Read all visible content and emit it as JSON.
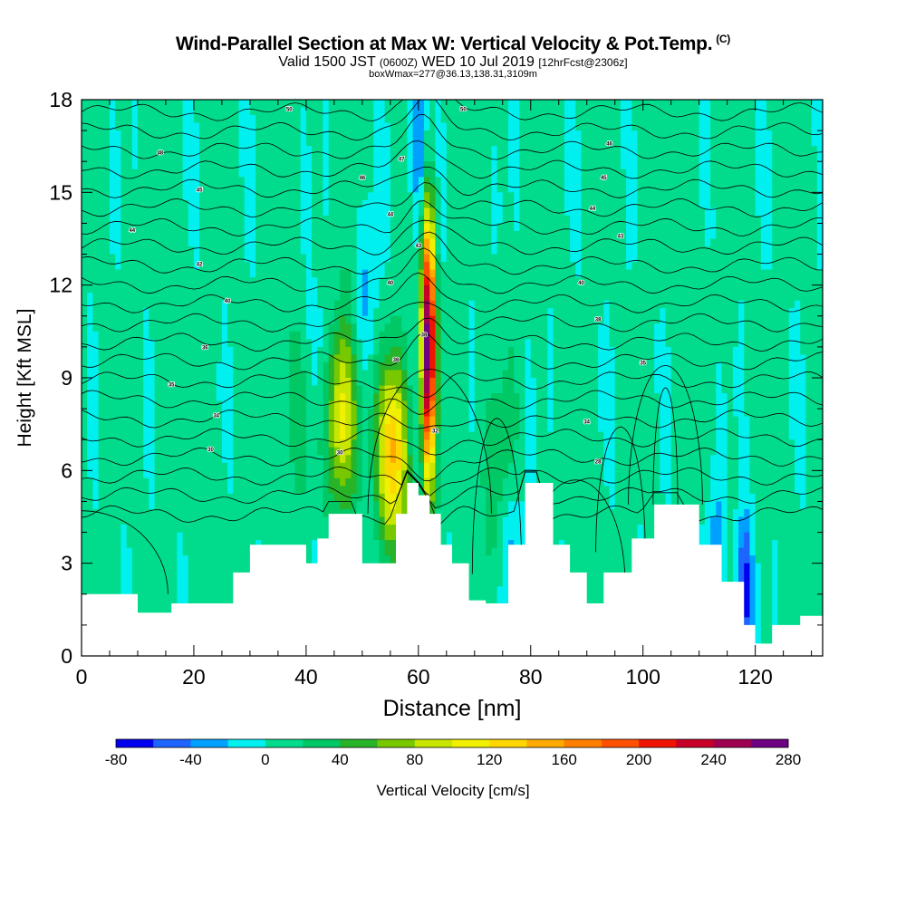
{
  "header": {
    "title": "Wind-Parallel Section at Max W: Vertical Velocity & Pot.Temp.",
    "copyright": "(C)",
    "valid_main": "Valid 1500 JST",
    "valid_z": "(0600Z)",
    "valid_date": "WED 10 Jul 2019",
    "fcst": "[12hrFcst@2306z]",
    "boxwmax": "boxWmax=277@36.13,138.31,3109m"
  },
  "chart_data": {
    "type": "heatmap",
    "xlabel": "Distance [nm]",
    "ylabel": "Height [Kft MSL]",
    "xlim": [
      0,
      132
    ],
    "ylim": [
      0,
      18
    ],
    "x_ticks": [
      0,
      20,
      40,
      60,
      80,
      100,
      120
    ],
    "y_ticks": [
      0,
      3,
      6,
      9,
      12,
      15,
      18
    ],
    "colorbar": {
      "label": "Vertical Velocity [cm/s]",
      "ticks": [
        -80,
        -40,
        0,
        40,
        80,
        120,
        160,
        200,
        240,
        280
      ],
      "levels": [
        -80,
        -60,
        -40,
        -20,
        0,
        20,
        40,
        60,
        80,
        100,
        120,
        140,
        160,
        180,
        200,
        220,
        240,
        260,
        280
      ],
      "colors": [
        "#0000f0",
        "#1e64ff",
        "#00a0ff",
        "#00f0f0",
        "#00dc8c",
        "#00c864",
        "#28b428",
        "#78c800",
        "#c8e600",
        "#f0f000",
        "#ffd700",
        "#ffaa00",
        "#ff8000",
        "#ff5000",
        "#f01400",
        "#c80028",
        "#a00050",
        "#6e0082"
      ]
    },
    "updrafts": [
      {
        "x": 46.5,
        "y_center": 7.8,
        "peak": 110
      },
      {
        "x": 55.5,
        "y_center": 6.5,
        "peak": 140
      },
      {
        "x": 61.8,
        "y_center": 10.0,
        "peak": 277
      },
      {
        "x": 38,
        "y_center": 8.0,
        "peak": 25
      },
      {
        "x": 74,
        "y_center": 6.0,
        "peak": 25
      }
    ],
    "downdrafts": [
      {
        "x": 60.2,
        "y_center": 16.5,
        "peak": -60
      },
      {
        "x": 42,
        "y_center": 9.5,
        "peak": -30
      },
      {
        "x": 51,
        "y_center": 11.5,
        "peak": -30
      },
      {
        "x": 118,
        "y_center": 2.0,
        "peak": -80
      },
      {
        "x": 113,
        "y_center": 3.0,
        "peak": -40
      },
      {
        "x": 77,
        "y_center": 3.5,
        "peak": -35
      }
    ],
    "terrain": [
      [
        0,
        2.0
      ],
      [
        8,
        2.0
      ],
      [
        10,
        1.4
      ],
      [
        16,
        1.7
      ],
      [
        24,
        1.7
      ],
      [
        27,
        2.7
      ],
      [
        30,
        3.6
      ],
      [
        36,
        3.6
      ],
      [
        40,
        3.0
      ],
      [
        42,
        3.8
      ],
      [
        44,
        4.6
      ],
      [
        48,
        4.6
      ],
      [
        50,
        3.0
      ],
      [
        53,
        3.0
      ],
      [
        56,
        4.6
      ],
      [
        58,
        5.6
      ],
      [
        60,
        5.2
      ],
      [
        62,
        4.6
      ],
      [
        64,
        3.6
      ],
      [
        66,
        3.0
      ],
      [
        69,
        1.8
      ],
      [
        72,
        1.7
      ],
      [
        76,
        3.6
      ],
      [
        79,
        5.6
      ],
      [
        81,
        5.6
      ],
      [
        84,
        3.6
      ],
      [
        87,
        2.7
      ],
      [
        90,
        1.7
      ],
      [
        93,
        2.7
      ],
      [
        98,
        3.8
      ],
      [
        102,
        4.9
      ],
      [
        106,
        4.9
      ],
      [
        110,
        3.6
      ],
      [
        114,
        2.4
      ],
      [
        118,
        1.0
      ],
      [
        120,
        0.4
      ],
      [
        123,
        1.0
      ],
      [
        128,
        1.3
      ],
      [
        132,
        1.3
      ]
    ],
    "isentrope_labels": [
      {
        "text": "50",
        "x": 37,
        "y": 17.7
      },
      {
        "text": "50",
        "x": 68,
        "y": 17.7
      },
      {
        "text": "48",
        "x": 14,
        "y": 16.3
      },
      {
        "text": "47",
        "x": 57,
        "y": 16.1
      },
      {
        "text": "46",
        "x": 94,
        "y": 16.6
      },
      {
        "text": "46",
        "x": 50,
        "y": 15.5
      },
      {
        "text": "45",
        "x": 21,
        "y": 15.1
      },
      {
        "text": "45",
        "x": 93,
        "y": 15.5
      },
      {
        "text": "44",
        "x": 55,
        "y": 14.3
      },
      {
        "text": "44",
        "x": 91,
        "y": 14.5
      },
      {
        "text": "44",
        "x": 9,
        "y": 13.8
      },
      {
        "text": "43",
        "x": 60,
        "y": 13.3
      },
      {
        "text": "43",
        "x": 96,
        "y": 13.6
      },
      {
        "text": "42",
        "x": 21,
        "y": 12.7
      },
      {
        "text": "40",
        "x": 55,
        "y": 12.1
      },
      {
        "text": "40",
        "x": 89,
        "y": 12.1
      },
      {
        "text": "40",
        "x": 26,
        "y": 11.5
      },
      {
        "text": "38",
        "x": 92,
        "y": 10.9
      },
      {
        "text": "38",
        "x": 61,
        "y": 10.4
      },
      {
        "text": "36",
        "x": 22,
        "y": 10.0
      },
      {
        "text": "36",
        "x": 56,
        "y": 9.6
      },
      {
        "text": "35",
        "x": 100,
        "y": 9.5
      },
      {
        "text": "35",
        "x": 16,
        "y": 8.8
      },
      {
        "text": "34",
        "x": 24,
        "y": 7.8
      },
      {
        "text": "34",
        "x": 90,
        "y": 7.6
      },
      {
        "text": "32",
        "x": 63,
        "y": 7.3
      },
      {
        "text": "30",
        "x": 23,
        "y": 6.7
      },
      {
        "text": "30",
        "x": 46,
        "y": 6.6
      },
      {
        "text": "28",
        "x": 92,
        "y": 6.3
      }
    ]
  }
}
